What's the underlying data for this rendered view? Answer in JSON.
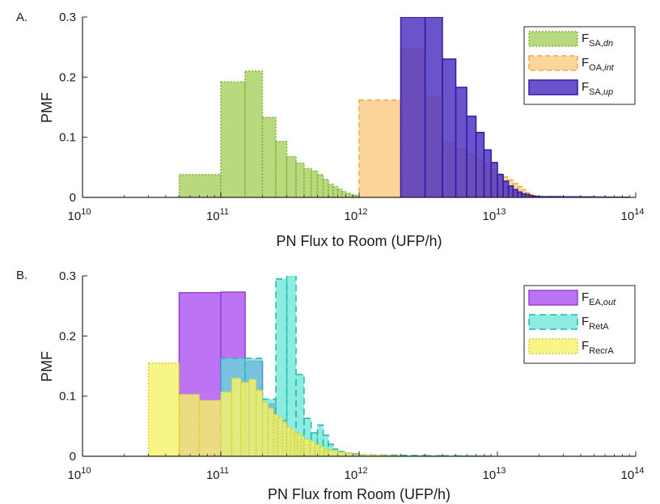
{
  "colors": {
    "sa_up": "#4b2ec0",
    "sa_dn": "#a8cf5e",
    "oa_int": "#fbc77a",
    "ea_out": "#b05cf2",
    "ret_a": "#5ce4d6",
    "recr_a": "#f5f36a",
    "axis": "#262626"
  },
  "chart_data": [
    {
      "type": "histogram",
      "panel_label": "A.",
      "xlabel": "PN Flux to Room (UFP/h)",
      "ylabel": "PMF",
      "xscale": "log",
      "xlim": [
        10000000000.0,
        100000000000000.0
      ],
      "ylim": [
        0,
        0.3
      ],
      "xticks": [
        {
          "base": "10",
          "exp": "10",
          "value": 10000000000.0
        },
        {
          "base": "10",
          "exp": "11",
          "value": 100000000000.0
        },
        {
          "base": "10",
          "exp": "12",
          "value": 1000000000000.0
        },
        {
          "base": "10",
          "exp": "13",
          "value": 10000000000000.0
        },
        {
          "base": "10",
          "exp": "14",
          "value": 100000000000000.0
        }
      ],
      "yticks": [
        {
          "label": "0",
          "value": 0
        },
        {
          "label": "0.1",
          "value": 0.1
        },
        {
          "label": "0.2",
          "value": 0.2
        },
        {
          "label": "0.3",
          "value": 0.3
        }
      ],
      "legend_position": "top-right",
      "series": [
        {
          "name": "F",
          "sub": "SA,",
          "sub_italic": "dn",
          "color": "#a8cf5e",
          "opacity": 0.8,
          "edge": "#82b33b",
          "dash": "2,2",
          "edges": [
            50000000000.0,
            100000000000.0,
            150000000000.0,
            200000000000.0,
            250000000000.0,
            300000000000.0,
            350000000000.0,
            400000000000.0,
            450000000000.0,
            500000000000.0,
            550000000000.0,
            600000000000.0,
            650000000000.0,
            700000000000.0,
            750000000000.0,
            800000000000.0,
            850000000000.0,
            900000000000.0,
            950000000000.0,
            1000000000000.0
          ],
          "values": [
            0.038,
            0.192,
            0.21,
            0.133,
            0.093,
            0.068,
            0.057,
            0.048,
            0.044,
            0.038,
            0.03,
            0.022,
            0.018,
            0.014,
            0.01,
            0.007,
            0.005,
            0.004,
            0.003
          ]
        },
        {
          "name": "F",
          "sub": "OA,",
          "sub_italic": "int",
          "color": "#fbc77a",
          "opacity": 0.75,
          "edge": "#f0a93a",
          "dash": "6,4",
          "edges": [
            1000000000000.0,
            2000000000000.0,
            3000000000000.0,
            4000000000000.0,
            5000000000000.0,
            6000000000000.0,
            7000000000000.0,
            8000000000000.0,
            9000000000000.0,
            10000000000000.0,
            11000000000000.0,
            12000000000000.0,
            13000000000000.0,
            14000000000000.0,
            15000000000000.0,
            16000000000000.0,
            17000000000000.0,
            18000000000000.0,
            19000000000000.0,
            20000000000000.0,
            30000000000000.0,
            40000000000000.0,
            50000000000000.0,
            60000000000000.0
          ],
          "values": [
            0.162,
            0.246,
            0.168,
            0.092,
            0.08,
            0.072,
            0.063,
            0.055,
            0.046,
            0.039,
            0.034,
            0.029,
            0.023,
            0.018,
            0.013,
            0.008,
            0.005,
            0.003,
            0.002,
            0.0015,
            0.001,
            0.0008,
            0.0005
          ]
        },
        {
          "name": "F",
          "sub": "SA,",
          "sub_italic": "up",
          "color": "#4b2ec0",
          "opacity": 0.82,
          "edge": "#2f1ba8",
          "dash": "",
          "edges": [
            2000000000000.0,
            3000000000000.0,
            4000000000000.0,
            5000000000000.0,
            6000000000000.0,
            7000000000000.0,
            8000000000000.0,
            9000000000000.0,
            10000000000000.0,
            11000000000000.0,
            12000000000000.0,
            13000000000000.0,
            14000000000000.0,
            15000000000000.0,
            16000000000000.0,
            17000000000000.0,
            18000000000000.0,
            19000000000000.0,
            20000000000000.0,
            30000000000000.0,
            40000000000000.0,
            50000000000000.0,
            60000000000000.0,
            70000000000000.0,
            80000000000000.0,
            90000000000000.0
          ],
          "values": [
            0.3,
            0.3,
            0.23,
            0.183,
            0.135,
            0.108,
            0.079,
            0.058,
            0.038,
            0.027,
            0.019,
            0.013,
            0.009,
            0.006,
            0.005,
            0.003,
            0.002,
            0.0015,
            0.0012,
            0.001,
            0.0008,
            0.0006,
            0.0005,
            0.0004,
            0.0004
          ]
        }
      ]
    },
    {
      "type": "histogram",
      "panel_label": "B.",
      "xlabel": "PN Flux from Room (UFP/h)",
      "ylabel": "PMF",
      "xscale": "log",
      "xlim": [
        10000000000.0,
        100000000000000.0
      ],
      "ylim": [
        0,
        0.3
      ],
      "xticks": [
        {
          "base": "10",
          "exp": "10",
          "value": 10000000000.0
        },
        {
          "base": "10",
          "exp": "11",
          "value": 100000000000.0
        },
        {
          "base": "10",
          "exp": "12",
          "value": 1000000000000.0
        },
        {
          "base": "10",
          "exp": "13",
          "value": 10000000000000.0
        },
        {
          "base": "10",
          "exp": "14",
          "value": 100000000000000.0
        }
      ],
      "yticks": [
        {
          "label": "0",
          "value": 0
        },
        {
          "label": "0.1",
          "value": 0.1
        },
        {
          "label": "0.2",
          "value": 0.2
        },
        {
          "label": "0.3",
          "value": 0.3
        }
      ],
      "legend_position": "top-right",
      "series": [
        {
          "name": "F",
          "sub": "EA,",
          "sub_italic": "out",
          "color": "#b05cf2",
          "opacity": 0.85,
          "edge": "#9440d8",
          "dash": "",
          "edges": [
            50000000000.0,
            100000000000.0,
            150000000000.0,
            200000000000.0,
            250000000000.0,
            300000000000.0,
            350000000000.0,
            400000000000.0,
            450000000000.0,
            500000000000.0,
            600000000000.0,
            700000000000.0,
            800000000000.0,
            900000000000.0,
            1000000000000.0,
            2000000000000.0
          ],
          "values": [
            0.272,
            0.273,
            0.158,
            0.087,
            0.06,
            0.04,
            0.028,
            0.02,
            0.015,
            0.01,
            0.007,
            0.005,
            0.003,
            0.002,
            0.001
          ]
        },
        {
          "name": "F",
          "sub": "RetA",
          "sub_italic": "",
          "color": "#5ce4d6",
          "opacity": 0.7,
          "edge": "#20b8aa",
          "dash": "8,5",
          "edges": [
            100000000000.0,
            150000000000.0,
            200000000000.0,
            250000000000.0,
            300000000000.0,
            350000000000.0,
            400000000000.0,
            450000000000.0,
            500000000000.0,
            550000000000.0,
            600000000000.0,
            650000000000.0,
            700000000000.0,
            800000000000.0,
            900000000000.0,
            1000000000000.0,
            2000000000000.0,
            3000000000000.0,
            4000000000000.0,
            5000000000000.0,
            6000000000000.0,
            7000000000000.0,
            8000000000000.0,
            9000000000000.0
          ],
          "values": [
            0.163,
            0.163,
            0.095,
            0.295,
            0.305,
            0.136,
            0.063,
            0.039,
            0.052,
            0.035,
            0.02,
            0.012,
            0.008,
            0.005,
            0.004,
            0.002,
            0.0015,
            0.001,
            0.0008,
            0.0006,
            0.0005,
            0.0004,
            0.0003
          ]
        },
        {
          "name": "F",
          "sub": "RecrA",
          "sub_italic": "",
          "color": "#f5f36a",
          "opacity": 0.82,
          "edge": "#d8d030",
          "dash": "2,2",
          "edges": [
            30000000000.0,
            50000000000.0,
            70000000000.0,
            100000000000.0,
            120000000000.0,
            140000000000.0,
            160000000000.0,
            180000000000.0,
            200000000000.0,
            220000000000.0,
            240000000000.0,
            260000000000.0,
            280000000000.0,
            300000000000.0,
            320000000000.0,
            340000000000.0,
            360000000000.0,
            380000000000.0,
            400000000000.0,
            440000000000.0,
            480000000000.0,
            520000000000.0,
            560000000000.0,
            600000000000.0,
            700000000000.0,
            800000000000.0,
            900000000000.0,
            1000000000000.0,
            1500000000000.0,
            2000000000000.0
          ],
          "values": [
            0.155,
            0.103,
            0.093,
            0.107,
            0.13,
            0.123,
            0.128,
            0.11,
            0.09,
            0.08,
            0.07,
            0.064,
            0.057,
            0.048,
            0.045,
            0.04,
            0.037,
            0.033,
            0.028,
            0.025,
            0.02,
            0.016,
            0.012,
            0.01,
            0.007,
            0.005,
            0.003,
            0.002,
            0.001
          ]
        }
      ]
    }
  ]
}
